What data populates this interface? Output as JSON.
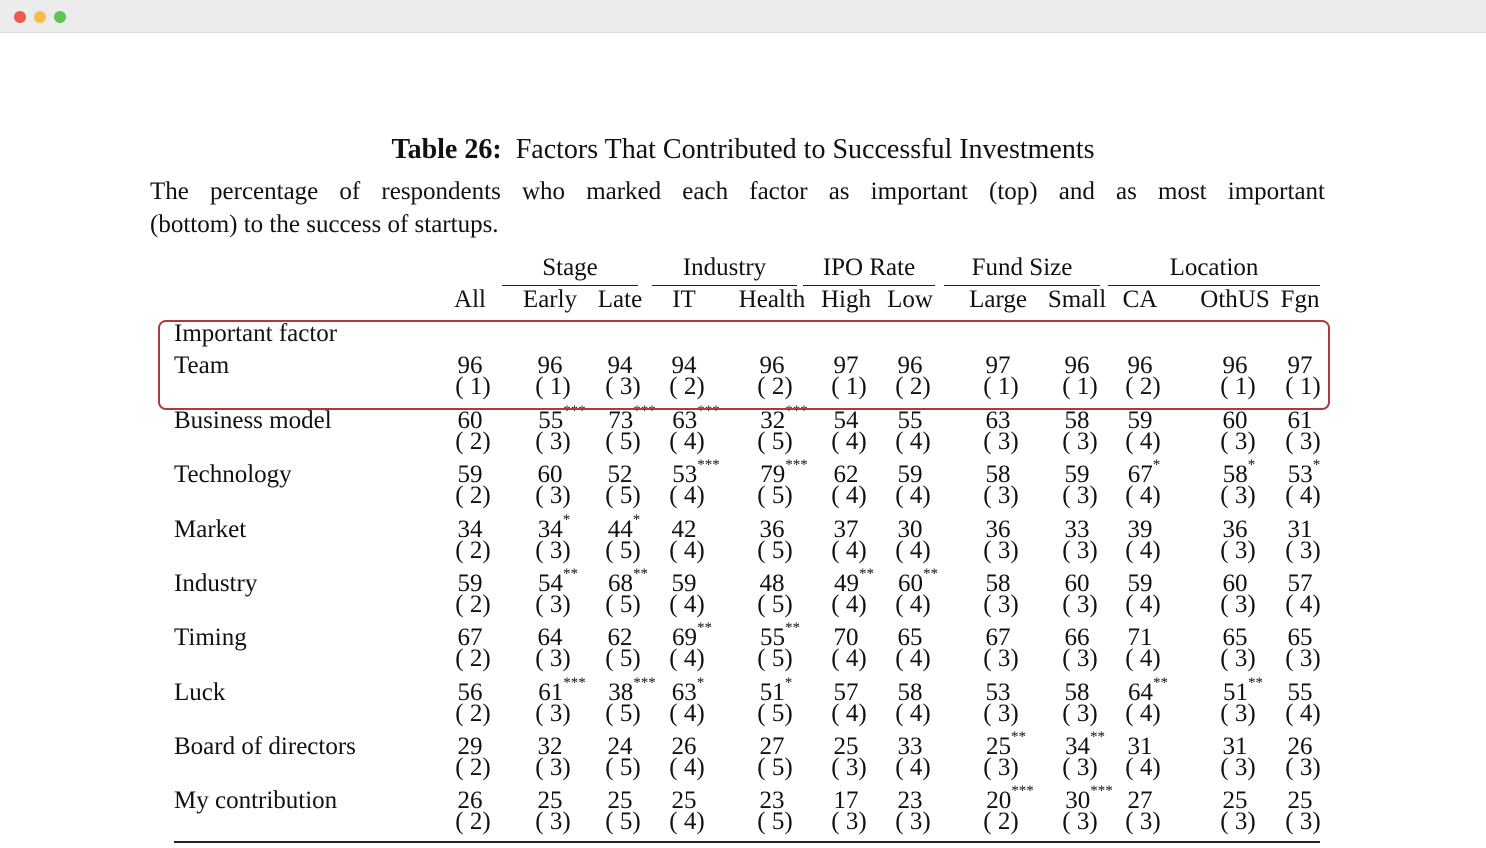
{
  "window": {
    "controls": [
      "close",
      "minimize",
      "maximize"
    ],
    "colors": {
      "close": "#ee5a52",
      "minimize": "#f5bd4f",
      "maximize": "#5fc453"
    }
  },
  "title": {
    "label": "Table 26:",
    "text": "Factors That Contributed to Successful Investments"
  },
  "caption": {
    "line1": "The percentage of respondents who marked each factor as important (top) and as most important",
    "line2": "(bottom) to the success of startups."
  },
  "groups": [
    "Stage",
    "Industry",
    "IPO Rate",
    "Fund Size",
    "Location"
  ],
  "columns": [
    "All",
    "Early",
    "Late",
    "IT",
    "Health",
    "High",
    "Low",
    "Large",
    "Small",
    "CA",
    "OthUS",
    "Fgn"
  ],
  "section": "Important factor",
  "highlight_color": "#b0393f",
  "rows": [
    {
      "label": "Team",
      "values": [
        "96",
        "96",
        "94",
        "94",
        "96",
        "97",
        "96",
        "97",
        "96",
        "96",
        "96",
        "97"
      ],
      "ranks": [
        "1",
        "1",
        "3",
        "2",
        "2",
        "1",
        "2",
        "1",
        "1",
        "2",
        "1",
        "1"
      ]
    },
    {
      "label": "Business model",
      "values": [
        "60",
        "55***",
        "73***",
        "63***",
        "32***",
        "54",
        "55",
        "63",
        "58",
        "59",
        "60",
        "61"
      ],
      "ranks": [
        "2",
        "3",
        "5",
        "4",
        "5",
        "4",
        "4",
        "3",
        "3",
        "4",
        "3",
        "3"
      ]
    },
    {
      "label": "Technology",
      "values": [
        "59",
        "60",
        "52",
        "53***",
        "79***",
        "62",
        "59",
        "58",
        "59",
        "67*",
        "58*",
        "53*"
      ],
      "ranks": [
        "2",
        "3",
        "5",
        "4",
        "5",
        "4",
        "4",
        "3",
        "3",
        "4",
        "3",
        "4"
      ]
    },
    {
      "label": "Market",
      "values": [
        "34",
        "34*",
        "44*",
        "42",
        "36",
        "37",
        "30",
        "36",
        "33",
        "39",
        "36",
        "31"
      ],
      "ranks": [
        "2",
        "3",
        "5",
        "4",
        "5",
        "4",
        "4",
        "3",
        "3",
        "4",
        "3",
        "3"
      ]
    },
    {
      "label": "Industry",
      "values": [
        "59",
        "54**",
        "68**",
        "59",
        "48",
        "49**",
        "60**",
        "58",
        "60",
        "59",
        "60",
        "57"
      ],
      "ranks": [
        "2",
        "3",
        "5",
        "4",
        "5",
        "4",
        "4",
        "3",
        "3",
        "4",
        "3",
        "4"
      ]
    },
    {
      "label": "Timing",
      "values": [
        "67",
        "64",
        "62",
        "69**",
        "55**",
        "70",
        "65",
        "67",
        "66",
        "71",
        "65",
        "65"
      ],
      "ranks": [
        "2",
        "3",
        "5",
        "4",
        "5",
        "4",
        "4",
        "3",
        "3",
        "4",
        "3",
        "3"
      ]
    },
    {
      "label": "Luck",
      "values": [
        "56",
        "61***",
        "38***",
        "63*",
        "51*",
        "57",
        "58",
        "53",
        "58",
        "64**",
        "51**",
        "55"
      ],
      "ranks": [
        "2",
        "3",
        "5",
        "4",
        "5",
        "4",
        "4",
        "3",
        "3",
        "4",
        "3",
        "4"
      ]
    },
    {
      "label": "Board of directors",
      "values": [
        "29",
        "32",
        "24",
        "26",
        "27",
        "25",
        "33",
        "25**",
        "34**",
        "31",
        "31",
        "26"
      ],
      "ranks": [
        "2",
        "3",
        "5",
        "4",
        "5",
        "3",
        "4",
        "3",
        "3",
        "4",
        "3",
        "3"
      ]
    },
    {
      "label": "My contribution",
      "values": [
        "26",
        "25",
        "25",
        "25",
        "23",
        "17",
        "23",
        "20***",
        "30***",
        "27",
        "25",
        "25"
      ],
      "ranks": [
        "2",
        "3",
        "5",
        "4",
        "5",
        "3",
        "3",
        "2",
        "3",
        "3",
        "3",
        "3"
      ]
    }
  ]
}
